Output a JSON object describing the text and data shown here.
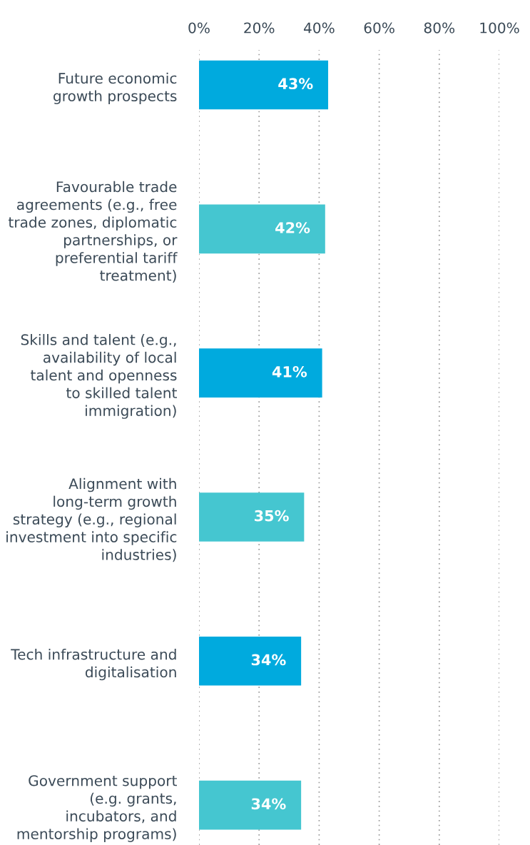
{
  "chart_data": {
    "type": "bar",
    "orientation": "horizontal",
    "categories": [
      "Future economic\ngrowth prospects",
      "Favourable trade\nagreements (e.g., free\ntrade zones, diplomatic\npartnerships, or\npreferential tariff\ntreatment)",
      "Skills and talent (e.g.,\navailability of local\ntalent and openness\nto skilled talent\nimmigration)",
      "Alignment with\nlong-term growth\nstrategy (e.g., regional\ninvestment into specific\nindustries)",
      "Tech infrastructure and\ndigitalisation",
      "Government support\n(e.g. grants,\nincubators, and\nmentorship programs)"
    ],
    "values": [
      43,
      42,
      41,
      35,
      34,
      34
    ],
    "value_labels": [
      "43%",
      "42%",
      "41%",
      "35%",
      "34%",
      "34%"
    ],
    "colors": [
      "#00aade",
      "#45c6d0",
      "#00aade",
      "#45c6d0",
      "#00aade",
      "#45c6d0"
    ],
    "xlim": [
      0,
      100
    ],
    "xticks": [
      {
        "value": 0,
        "label": "0%"
      },
      {
        "value": 20,
        "label": "20%"
      },
      {
        "value": 40,
        "label": "40%"
      },
      {
        "value": 60,
        "label": "60%"
      },
      {
        "value": 80,
        "label": "80%"
      },
      {
        "value": 100,
        "label": "100%"
      }
    ],
    "grid": "x"
  }
}
